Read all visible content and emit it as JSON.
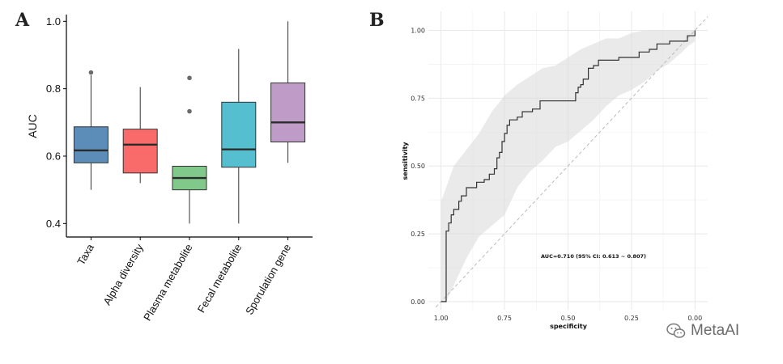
{
  "chart_data": [
    {
      "panel": "A",
      "type": "box",
      "ylabel": "AUC",
      "xlabel": "",
      "ylim": [
        0.36,
        1.02
      ],
      "yticks": [
        0.4,
        0.6,
        0.8,
        1.0
      ],
      "ytick_labels": [
        "0.4",
        "0.6",
        "0.8",
        "1.0"
      ],
      "categories": [
        "Taxa",
        "Alpha diversity",
        "Plasma metabolite",
        "Fecal metabolite",
        "Sporulation gene"
      ],
      "series": [
        {
          "name": "Taxa",
          "color": "#5b8db8",
          "whisker_low": 0.5,
          "q1": 0.58,
          "median": 0.617,
          "q3": 0.687,
          "whisker_high": 0.84,
          "outliers": [
            0.848
          ]
        },
        {
          "name": "Alpha diversity",
          "color": "#f96a6a",
          "whisker_low": 0.52,
          "q1": 0.55,
          "median": 0.634,
          "q3": 0.68,
          "whisker_high": 0.805,
          "outliers": []
        },
        {
          "name": "Plasma metabolite",
          "color": "#80c98a",
          "whisker_low": 0.4,
          "q1": 0.5,
          "median": 0.535,
          "q3": 0.57,
          "whisker_high": 0.57,
          "outliers": [
            0.733,
            0.832
          ]
        },
        {
          "name": "Fecal metabolite",
          "color": "#56bfcf",
          "whisker_low": 0.4,
          "q1": 0.567,
          "median": 0.62,
          "q3": 0.76,
          "whisker_high": 0.918,
          "outliers": []
        },
        {
          "name": "Sporulation gene",
          "color": "#bf9bc8",
          "whisker_low": 0.58,
          "q1": 0.642,
          "median": 0.7,
          "q3": 0.817,
          "whisker_high": 1.0,
          "outliers": []
        }
      ]
    },
    {
      "panel": "B",
      "type": "line",
      "title": "",
      "xlabel": "specificity",
      "ylabel": "sensitivity",
      "xlim": [
        1.05,
        -0.05
      ],
      "ylim": [
        -0.03,
        1.07
      ],
      "xticks": [
        1.0,
        0.75,
        0.5,
        0.25,
        0.0
      ],
      "xtick_labels": [
        "1.00",
        "0.75",
        "0.50",
        "0.25",
        "0.00"
      ],
      "yticks": [
        0.0,
        0.25,
        0.5,
        0.75,
        1.0
      ],
      "ytick_labels": [
        "0.00",
        "0.25",
        "0.50",
        "0.75",
        "1.00"
      ],
      "annotation": "AUC=0.710 (95% CI: 0.613 ~ 0.807)",
      "roc_curve": {
        "specificity": [
          1.0,
          0.98,
          0.98,
          0.97,
          0.97,
          0.96,
          0.96,
          0.95,
          0.95,
          0.93,
          0.93,
          0.92,
          0.92,
          0.9,
          0.9,
          0.88,
          0.88,
          0.86,
          0.86,
          0.83,
          0.83,
          0.81,
          0.81,
          0.79,
          0.79,
          0.78,
          0.78,
          0.77,
          0.77,
          0.76,
          0.76,
          0.75,
          0.75,
          0.74,
          0.74,
          0.73,
          0.73,
          0.72,
          0.72,
          0.7,
          0.7,
          0.68,
          0.68,
          0.64,
          0.64,
          0.61,
          0.61,
          0.47,
          0.47,
          0.46,
          0.46,
          0.45,
          0.45,
          0.44,
          0.44,
          0.42,
          0.42,
          0.4,
          0.4,
          0.38,
          0.38,
          0.35,
          0.35,
          0.3,
          0.3,
          0.22,
          0.22,
          0.18,
          0.18,
          0.15,
          0.15,
          0.1,
          0.1,
          0.03,
          0.03,
          0.0,
          0.0
        ],
        "sensitivity": [
          0.0,
          0.0,
          0.26,
          0.26,
          0.29,
          0.29,
          0.32,
          0.32,
          0.34,
          0.34,
          0.37,
          0.37,
          0.39,
          0.39,
          0.42,
          0.42,
          0.42,
          0.42,
          0.44,
          0.44,
          0.45,
          0.45,
          0.47,
          0.47,
          0.49,
          0.49,
          0.53,
          0.53,
          0.55,
          0.55,
          0.59,
          0.59,
          0.62,
          0.62,
          0.65,
          0.65,
          0.67,
          0.67,
          0.67,
          0.67,
          0.68,
          0.68,
          0.7,
          0.7,
          0.71,
          0.71,
          0.74,
          0.74,
          0.77,
          0.77,
          0.79,
          0.79,
          0.8,
          0.8,
          0.82,
          0.82,
          0.86,
          0.86,
          0.87,
          0.87,
          0.89,
          0.89,
          0.89,
          0.89,
          0.9,
          0.9,
          0.92,
          0.92,
          0.93,
          0.93,
          0.95,
          0.95,
          0.96,
          0.96,
          0.98,
          0.98,
          1.0
        ]
      },
      "ci_band": {
        "specificity": [
          1.0,
          0.98,
          0.95,
          0.9,
          0.85,
          0.8,
          0.75,
          0.7,
          0.65,
          0.6,
          0.55,
          0.5,
          0.45,
          0.4,
          0.35,
          0.3,
          0.25,
          0.2,
          0.15,
          0.1,
          0.05,
          0.03,
          0.0
        ],
        "upper": [
          0.37,
          0.42,
          0.5,
          0.56,
          0.62,
          0.7,
          0.76,
          0.8,
          0.83,
          0.86,
          0.87,
          0.9,
          0.93,
          0.95,
          0.97,
          0.97,
          0.99,
          1.0,
          1.0,
          1.0,
          1.0,
          1.0,
          1.0
        ],
        "lower": [
          0.0,
          0.0,
          0.06,
          0.16,
          0.24,
          0.28,
          0.32,
          0.42,
          0.48,
          0.52,
          0.57,
          0.59,
          0.63,
          0.67,
          0.72,
          0.76,
          0.78,
          0.81,
          0.85,
          0.88,
          0.92,
          0.94,
          0.96
        ]
      }
    }
  ],
  "panel_labels": {
    "a": "A",
    "b": "B"
  },
  "watermark": {
    "text": "MetaAI",
    "icon": "wechat-icon"
  }
}
